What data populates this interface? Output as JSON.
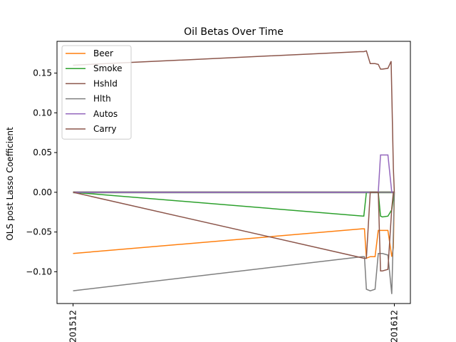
{
  "chart_data": {
    "type": "line",
    "title": "Oil   Betas Over Time",
    "xlabel": "",
    "ylabel": "OLS post Lasso Coefficient",
    "xlim": [
      -0.05,
      1.05
    ],
    "ylim": [
      -0.14,
      0.19
    ],
    "x_ticks": [
      {
        "x": 0,
        "label": "201512"
      },
      {
        "x": 1,
        "label": "201612"
      }
    ],
    "y_ticks": [
      {
        "y": 0.15,
        "label": "0.15"
      },
      {
        "y": 0.1,
        "label": "0.10"
      },
      {
        "y": 0.05,
        "label": "0.05"
      },
      {
        "y": 0.0,
        "label": "0.00"
      },
      {
        "y": -0.05,
        "label": "−0.05"
      },
      {
        "y": -0.1,
        "label": "−0.10"
      }
    ],
    "legend_position": "top-left",
    "grid": false,
    "series": [
      {
        "name": "Beer",
        "color": "#ff7f0e",
        "in_legend": true,
        "x": [
          0,
          0.9,
          0.907,
          0.913,
          0.925,
          0.94,
          0.95,
          0.957,
          0.963,
          0.98,
          0.992,
          0.997,
          1.0
        ],
        "y": [
          -0.077,
          -0.046,
          -0.046,
          -0.083,
          -0.081,
          -0.081,
          -0.048,
          -0.048,
          -0.048,
          -0.048,
          -0.081,
          -0.07,
          0.0
        ]
      },
      {
        "name": "Smoke",
        "color": "#2ca02c",
        "in_legend": true,
        "x": [
          0,
          0.905,
          0.913,
          0.925,
          0.94,
          0.95,
          0.957,
          0.963,
          0.98,
          0.992,
          0.997,
          1.0
        ],
        "y": [
          0.0,
          -0.03,
          0.0,
          0.0,
          0.0,
          0.0,
          -0.03,
          -0.031,
          -0.03,
          -0.022,
          -0.008,
          0.0
        ]
      },
      {
        "name": "Hshld",
        "color": "#8c564b",
        "in_legend": true,
        "x": [
          0,
          0.893,
          0.905,
          0.913,
          0.925,
          0.94,
          0.95,
          0.957,
          0.963,
          0.98,
          0.99,
          0.997,
          1.0
        ],
        "y": [
          0.16,
          0.177,
          0.177,
          0.178,
          0.162,
          0.162,
          0.161,
          0.155,
          0.155,
          0.156,
          0.165,
          0.03,
          0.0
        ]
      },
      {
        "name": "Hlth",
        "color": "#7f7f7f",
        "in_legend": true,
        "x": [
          0,
          0.9,
          0.907,
          0.913,
          0.925,
          0.94,
          0.95,
          0.957,
          0.963,
          0.98,
          0.992,
          0.997,
          1.0
        ],
        "y": [
          -0.124,
          -0.081,
          -0.081,
          -0.122,
          -0.124,
          -0.122,
          -0.077,
          -0.077,
          -0.077,
          -0.079,
          -0.128,
          -0.05,
          0.0
        ]
      },
      {
        "name": "Autos",
        "color": "#9467bd",
        "in_legend": true,
        "x": [
          0,
          0.94,
          0.95,
          0.957,
          0.963,
          0.98,
          0.992,
          0.997,
          1.0
        ],
        "y": [
          0.0,
          0.0,
          0.0,
          0.047,
          0.047,
          0.047,
          0.0,
          0.0,
          0.0
        ]
      },
      {
        "name": "Carry",
        "color": "#8c564b",
        "in_legend": true,
        "x": [
          0,
          0.905,
          0.913,
          0.925,
          0.94,
          0.95,
          0.957,
          0.963,
          0.98,
          0.992,
          0.997,
          1.0
        ],
        "y": [
          0.0,
          -0.083,
          -0.083,
          0.0,
          0.0,
          0.0,
          -0.099,
          -0.099,
          -0.097,
          -0.02,
          0.0,
          0.0
        ]
      },
      {
        "name": "",
        "color": "#17becf",
        "in_legend": false,
        "x": [
          0,
          1.0
        ],
        "y": [
          0.0,
          0.0
        ]
      },
      {
        "name": "",
        "color": "#bcbd22",
        "in_legend": false,
        "x": [
          0,
          1.0
        ],
        "y": [
          0.0,
          0.0
        ]
      },
      {
        "name": "",
        "color": "#7f7f7f",
        "in_legend": false,
        "x": [
          0,
          1.0
        ],
        "y": [
          0.0,
          0.0
        ]
      }
    ]
  }
}
